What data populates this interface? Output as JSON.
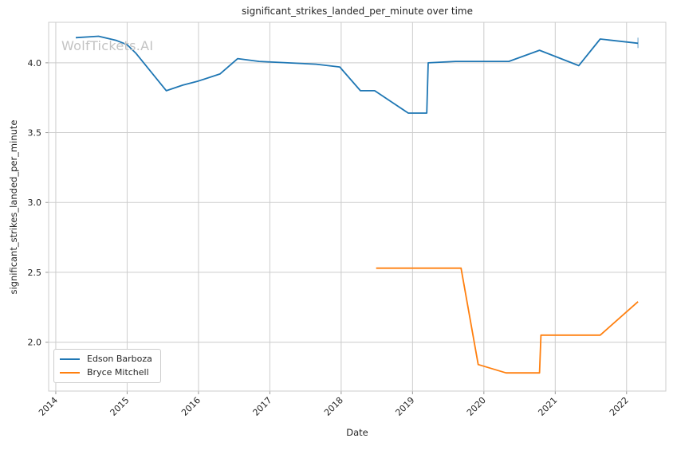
{
  "watermark": "WolfTickets.AI",
  "colors": {
    "grid": "#cccccc",
    "spine": "#cccccc",
    "tick_mark": "#999999",
    "text": "#262626",
    "watermark": "#c3c3c3",
    "background": "#ffffff",
    "series_blue": "#1f77b4",
    "series_orange": "#ff7f0e"
  },
  "chart_data": {
    "type": "line",
    "title": "significant_strikes_landed_per_minute over time",
    "xlabel": "Date",
    "ylabel": "significant_strikes_landed_per_minute",
    "xlim": [
      2013.9,
      2022.55
    ],
    "ylim": [
      1.65,
      4.29
    ],
    "grid": true,
    "legend_position": "lower left",
    "x_ticks": [
      {
        "value": 2014,
        "label": "2014"
      },
      {
        "value": 2015,
        "label": "2015"
      },
      {
        "value": 2016,
        "label": "2016"
      },
      {
        "value": 2017,
        "label": "2017"
      },
      {
        "value": 2018,
        "label": "2018"
      },
      {
        "value": 2019,
        "label": "2019"
      },
      {
        "value": 2020,
        "label": "2020"
      },
      {
        "value": 2021,
        "label": "2021"
      },
      {
        "value": 2022,
        "label": "2022"
      }
    ],
    "y_ticks": [
      {
        "value": 2.0,
        "label": "2.0"
      },
      {
        "value": 2.5,
        "label": "2.5"
      },
      {
        "value": 3.0,
        "label": "3.0"
      },
      {
        "value": 3.5,
        "label": "3.5"
      },
      {
        "value": 4.0,
        "label": "4.0"
      }
    ],
    "series": [
      {
        "name": "Edson Barboza",
        "color": "#1f77b4",
        "end_cap": true,
        "points": [
          [
            2014.28,
            4.18
          ],
          [
            2014.6,
            4.19
          ],
          [
            2014.85,
            4.16
          ],
          [
            2015.0,
            4.13
          ],
          [
            2015.12,
            4.07
          ],
          [
            2015.55,
            3.8
          ],
          [
            2015.78,
            3.84
          ],
          [
            2016.0,
            3.87
          ],
          [
            2016.3,
            3.92
          ],
          [
            2016.55,
            4.03
          ],
          [
            2016.85,
            4.01
          ],
          [
            2017.25,
            4.0
          ],
          [
            2017.65,
            3.99
          ],
          [
            2017.98,
            3.97
          ],
          [
            2018.27,
            3.8
          ],
          [
            2018.47,
            3.8
          ],
          [
            2018.94,
            3.64
          ],
          [
            2019.2,
            3.64
          ],
          [
            2019.22,
            4.0
          ],
          [
            2019.6,
            4.01
          ],
          [
            2020.35,
            4.01
          ],
          [
            2020.78,
            4.09
          ],
          [
            2021.33,
            3.98
          ],
          [
            2021.63,
            4.17
          ],
          [
            2022.16,
            4.14
          ]
        ]
      },
      {
        "name": "Bryce Mitchell",
        "color": "#ff7f0e",
        "end_cap": false,
        "points": [
          [
            2018.49,
            2.53
          ],
          [
            2019.68,
            2.53
          ],
          [
            2019.92,
            1.84
          ],
          [
            2020.31,
            1.78
          ],
          [
            2020.78,
            1.78
          ],
          [
            2020.8,
            2.05
          ],
          [
            2021.63,
            2.05
          ],
          [
            2022.16,
            2.29
          ]
        ]
      }
    ]
  }
}
